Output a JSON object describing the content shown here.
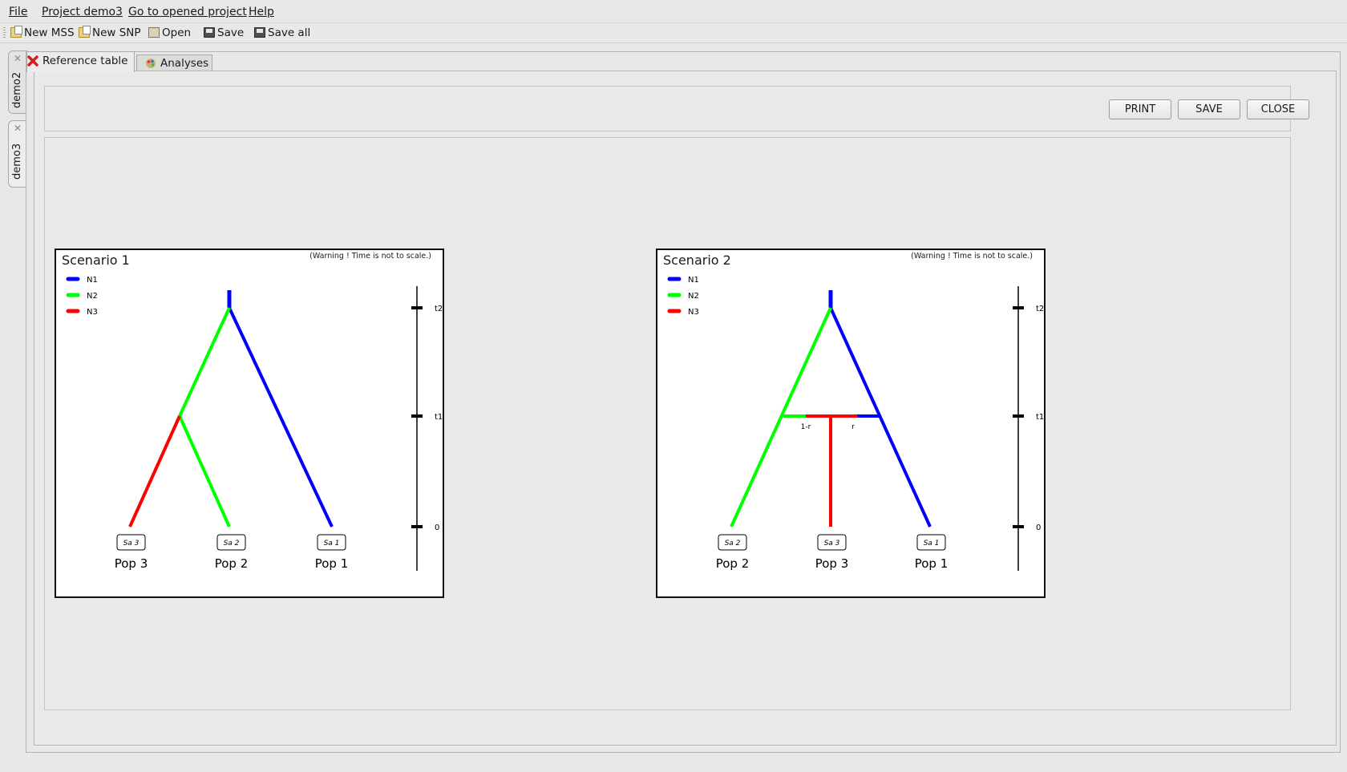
{
  "menu": {
    "items": [
      {
        "label": "File"
      },
      {
        "label": "Project demo3"
      },
      {
        "label": "Go to opened project"
      },
      {
        "label": "Help"
      }
    ]
  },
  "toolbar": {
    "new_mss": "New MSS",
    "new_snp": "New SNP",
    "open": "Open",
    "save": "Save",
    "save_all": "Save all"
  },
  "project_tabs": [
    {
      "label": "demo2",
      "close_icon": "close-icon"
    },
    {
      "label": "demo3",
      "close_icon": "close-icon"
    }
  ],
  "view_tabs": [
    {
      "label": "Reference table",
      "icon": "red-x-icon"
    },
    {
      "label": "Analyses",
      "icon": "palette-icon"
    }
  ],
  "actions": {
    "print": "PRINT",
    "save": "SAVE",
    "close": "CLOSE"
  },
  "colors": {
    "N1": "#0000ff",
    "N2": "#00ff00",
    "N3": "#ff0000"
  },
  "scenarios": [
    {
      "title": "Scenario 1",
      "warning": "(Warning ! Time is not to scale.)",
      "legend": [
        "N1",
        "N2",
        "N3"
      ],
      "time_labels": [
        "t2",
        "t1",
        "0"
      ],
      "samples": [
        "Sa 3",
        "Sa 2",
        "Sa 1"
      ],
      "pops": [
        "Pop 3",
        "Pop 2",
        "Pop 1"
      ]
    },
    {
      "title": "Scenario 2",
      "warning": "(Warning ! Time is not to scale.)",
      "legend": [
        "N1",
        "N2",
        "N3"
      ],
      "time_labels": [
        "t2",
        "t1",
        "0"
      ],
      "samples": [
        "Sa 2",
        "Sa 3",
        "Sa 1"
      ],
      "pops": [
        "Pop 2",
        "Pop 3",
        "Pop 1"
      ],
      "admix_labels": [
        "1-r",
        "r"
      ]
    }
  ]
}
